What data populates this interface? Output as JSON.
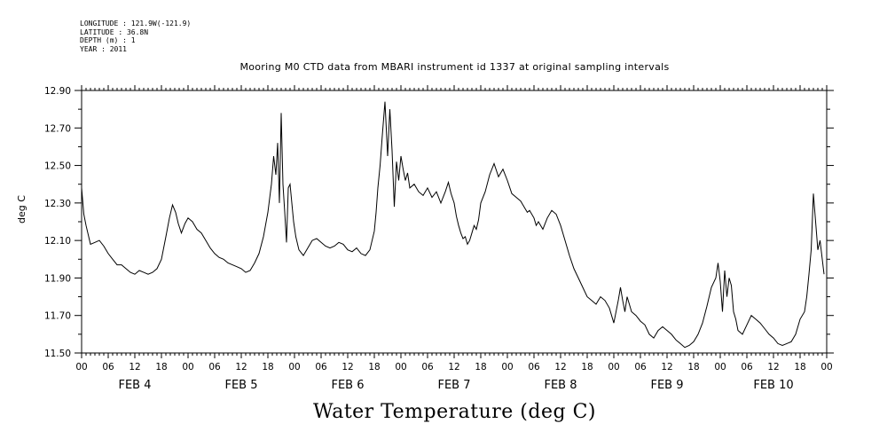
{
  "meta": {
    "longitude": "LONGITUDE : 121.9W(-121.9)",
    "latitude": "LATITUDE : 36.8N",
    "depth": "DEPTH (m) : 1",
    "year": "YEAR : 2011"
  },
  "chart_data": {
    "type": "line",
    "title": "Water Temperature (deg C)",
    "subtitle": "Mooring M0 CTD data from MBARI instrument id 1337 at original sampling intervals",
    "xlabel": "",
    "ylabel": "deg C",
    "ylim": [
      11.5,
      12.9
    ],
    "xlim_hours": [
      0,
      168
    ],
    "y_ticks": [
      "12.90",
      "12.70",
      "12.50",
      "12.30",
      "12.10",
      "11.90",
      "11.70",
      "11.50"
    ],
    "x_tick_labels": [
      "00",
      "06",
      "12",
      "18",
      "00",
      "06",
      "12",
      "18",
      "00",
      "06",
      "12",
      "18",
      "00",
      "06",
      "12",
      "18",
      "00",
      "06",
      "12",
      "18",
      "00",
      "06",
      "12",
      "18",
      "00",
      "06",
      "12",
      "18",
      "00"
    ],
    "day_labels": [
      "FEB  4",
      "FEB  5",
      "FEB  6",
      "FEB  7",
      "FEB  8",
      "FEB  9",
      "FEB 10"
    ],
    "grid": false,
    "series": [
      {
        "x": [
          0,
          0.5,
          1,
          2,
          3,
          4,
          5,
          6,
          7,
          8,
          9,
          10,
          11,
          12,
          13,
          14,
          15,
          16,
          17,
          18,
          19,
          19.8,
          20.5,
          21.2,
          21.8,
          22.5,
          23.3,
          24,
          25,
          26,
          27,
          28,
          29,
          30,
          31,
          32,
          33,
          34,
          35,
          36,
          37,
          38,
          39,
          40,
          41,
          42,
          42.8,
          43.3,
          43.8,
          44.2,
          44.6,
          45,
          45.4,
          45.8,
          46.2,
          46.6,
          47,
          47.4,
          47.8,
          48.3,
          49,
          50,
          51,
          52,
          53,
          54,
          55,
          56,
          57,
          58,
          59,
          60,
          61,
          62,
          63,
          64,
          65,
          66,
          66.4,
          66.8,
          67.3,
          67.8,
          68.4,
          69,
          69.5,
          70,
          70.5,
          71,
          71.5,
          72,
          72.5,
          73,
          73.5,
          74,
          75,
          76,
          77,
          78,
          79,
          80,
          81,
          82,
          82.7,
          83.3,
          84,
          84.5,
          85,
          85.5,
          86,
          86.5,
          87,
          87.5,
          88,
          88.5,
          89,
          89.5,
          90,
          91,
          92,
          93,
          94,
          95,
          96,
          97,
          98,
          99,
          99.5,
          100,
          100.5,
          101,
          101.5,
          102,
          102.5,
          103,
          104,
          105,
          106,
          107,
          108,
          109,
          110,
          111,
          112,
          113,
          114,
          115,
          116,
          117,
          118,
          119,
          120,
          121,
          121.5,
          122,
          122.5,
          123,
          123.5,
          124,
          125,
          126,
          127,
          128,
          129,
          130,
          131,
          132,
          133,
          134,
          135,
          136,
          137,
          138,
          139,
          140,
          141,
          142,
          143,
          143.5,
          144,
          144.5,
          145,
          145.5,
          146,
          146.5,
          147,
          147.5,
          148,
          149,
          150,
          151,
          152,
          153,
          154,
          155,
          156,
          157,
          158,
          159,
          160,
          161,
          162,
          163,
          163.5,
          164,
          164.5,
          165,
          165.5,
          166,
          166.5,
          167,
          167.4
        ],
        "y": [
          12.38,
          12.24,
          12.18,
          12.08,
          12.09,
          12.1,
          12.07,
          12.03,
          12.0,
          11.97,
          11.97,
          11.95,
          11.93,
          11.92,
          11.94,
          11.93,
          11.92,
          11.93,
          11.95,
          12.0,
          12.12,
          12.22,
          12.29,
          12.25,
          12.19,
          12.14,
          12.19,
          12.22,
          12.2,
          12.16,
          12.14,
          12.1,
          12.06,
          12.03,
          12.01,
          12.0,
          11.98,
          11.97,
          11.96,
          11.95,
          11.93,
          11.94,
          11.98,
          12.03,
          12.12,
          12.25,
          12.4,
          12.55,
          12.45,
          12.62,
          12.3,
          12.78,
          12.4,
          12.25,
          12.09,
          12.38,
          12.4,
          12.3,
          12.2,
          12.12,
          12.05,
          12.02,
          12.06,
          12.1,
          12.11,
          12.09,
          12.07,
          12.06,
          12.07,
          12.09,
          12.08,
          12.05,
          12.04,
          12.06,
          12.03,
          12.02,
          12.05,
          12.15,
          12.25,
          12.38,
          12.5,
          12.66,
          12.84,
          12.55,
          12.8,
          12.58,
          12.28,
          12.52,
          12.42,
          12.55,
          12.48,
          12.42,
          12.46,
          12.38,
          12.4,
          12.36,
          12.34,
          12.38,
          12.33,
          12.36,
          12.3,
          12.36,
          12.41,
          12.35,
          12.3,
          12.23,
          12.18,
          12.14,
          12.11,
          12.12,
          12.08,
          12.1,
          12.14,
          12.18,
          12.16,
          12.21,
          12.3,
          12.36,
          12.45,
          12.51,
          12.44,
          12.48,
          12.42,
          12.35,
          12.33,
          12.31,
          12.29,
          12.27,
          12.25,
          12.26,
          12.24,
          12.22,
          12.18,
          12.2,
          12.16,
          12.22,
          12.26,
          12.24,
          12.18,
          12.1,
          12.02,
          11.95,
          11.9,
          11.85,
          11.8,
          11.78,
          11.76,
          11.8,
          11.78,
          11.74,
          11.66,
          11.78,
          11.85,
          11.78,
          11.72,
          11.8,
          11.76,
          11.72,
          11.7,
          11.67,
          11.65,
          11.6,
          11.58,
          11.62,
          11.64,
          11.62,
          11.6,
          11.57,
          11.55,
          11.53,
          11.54,
          11.56,
          11.6,
          11.66,
          11.75,
          11.85,
          11.9,
          11.98,
          11.88,
          11.72,
          11.94,
          11.8,
          11.9,
          11.86,
          11.72,
          11.68,
          11.62,
          11.6,
          11.65,
          11.7,
          11.68,
          11.66,
          11.63,
          11.6,
          11.58,
          11.55,
          11.54,
          11.55,
          11.56,
          11.6,
          11.68,
          11.72,
          11.8,
          11.92,
          12.05,
          12.35,
          12.2,
          12.05,
          12.1,
          12.0,
          11.92
        ]
      }
    ]
  }
}
